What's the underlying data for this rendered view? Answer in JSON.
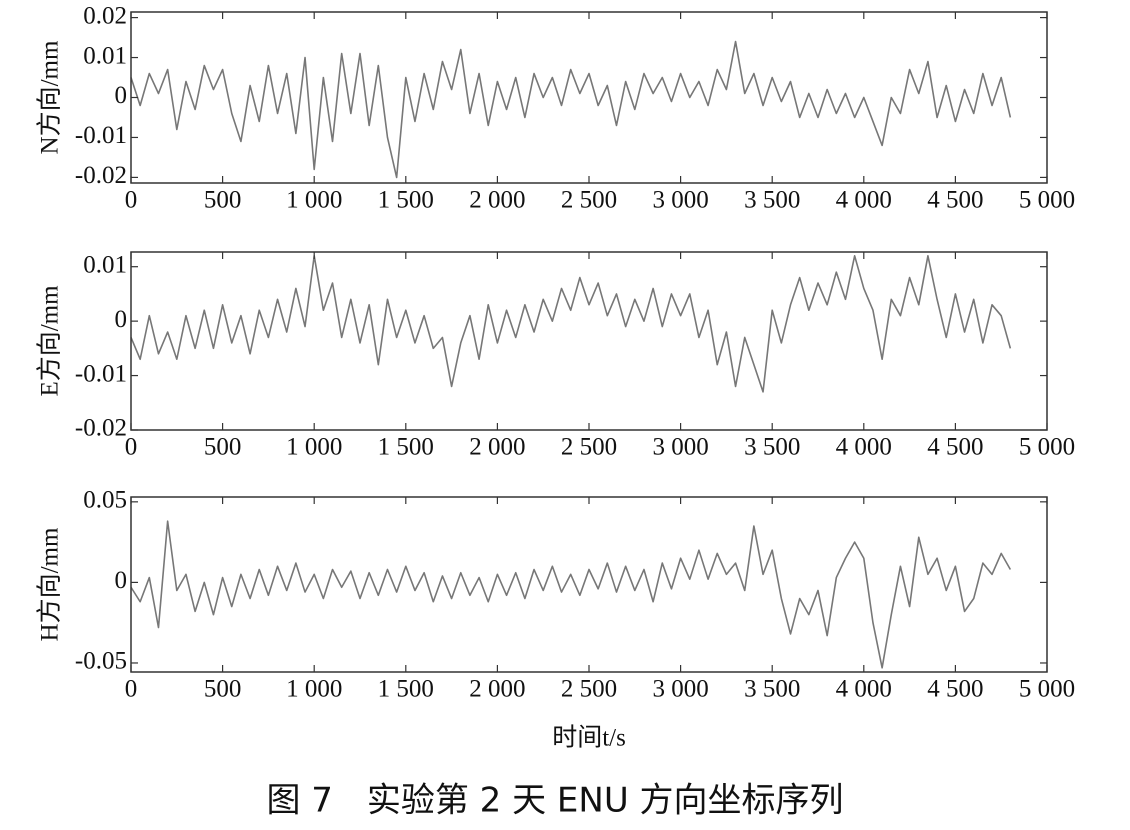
{
  "caption": "图 7　实验第 2 天 ENU 方向坐标序列",
  "chart_data": [
    {
      "type": "line",
      "ylabel": "N方向/mm",
      "x": [
        0,
        50,
        100,
        150,
        200,
        250,
        300,
        350,
        400,
        450,
        500,
        550,
        600,
        650,
        700,
        750,
        800,
        850,
        900,
        950,
        1000,
        1050,
        1100,
        1150,
        1200,
        1250,
        1300,
        1350,
        1400,
        1450,
        1500,
        1550,
        1600,
        1650,
        1700,
        1750,
        1800,
        1850,
        1900,
        1950,
        2000,
        2050,
        2100,
        2150,
        2200,
        2250,
        2300,
        2350,
        2400,
        2450,
        2500,
        2550,
        2600,
        2650,
        2700,
        2750,
        2800,
        2850,
        2900,
        2950,
        3000,
        3050,
        3100,
        3150,
        3200,
        3250,
        3300,
        3350,
        3400,
        3450,
        3500,
        3550,
        3600,
        3650,
        3700,
        3750,
        3800,
        3850,
        3900,
        3950,
        4000,
        4050,
        4100,
        4150,
        4200,
        4250,
        4300,
        4350,
        4400,
        4450,
        4500,
        4550,
        4600,
        4650,
        4700,
        4750,
        4800
      ],
      "series": [
        {
          "color": "#777777",
          "values": [
            0.005,
            -0.002,
            0.006,
            0.001,
            0.007,
            -0.008,
            0.004,
            -0.003,
            0.008,
            0.002,
            0.007,
            -0.004,
            -0.011,
            0.003,
            -0.006,
            0.008,
            -0.004,
            0.006,
            -0.009,
            0.01,
            -0.018,
            0.005,
            -0.011,
            0.011,
            -0.004,
            0.011,
            -0.007,
            0.008,
            -0.01,
            -0.02,
            0.005,
            -0.006,
            0.006,
            -0.003,
            0.009,
            0.002,
            0.012,
            -0.004,
            0.006,
            -0.007,
            0.004,
            -0.003,
            0.005,
            -0.005,
            0.006,
            0,
            0.005,
            -0.002,
            0.007,
            0.001,
            0.006,
            -0.002,
            0.003,
            -0.007,
            0.004,
            -0.003,
            0.006,
            0.001,
            0.005,
            -0.001,
            0.006,
            0,
            0.004,
            -0.002,
            0.007,
            0.002,
            0.014,
            0.001,
            0.006,
            -0.002,
            0.005,
            -0.001,
            0.004,
            -0.005,
            0.001,
            -0.005,
            0.002,
            -0.004,
            0.001,
            -0.005,
            0,
            -0.006,
            -0.012,
            0,
            -0.004,
            0.007,
            0.001,
            0.009,
            -0.005,
            0.003,
            -0.006,
            0.002,
            -0.004,
            0.006,
            -0.002,
            0.005,
            -0.005
          ]
        }
      ],
      "xlim": [
        0,
        5000
      ],
      "xticks": [
        0,
        500,
        {
          "value": 1000,
          "label": "1 000"
        },
        {
          "value": 1500,
          "label": "1 500"
        },
        {
          "value": 2000,
          "label": "2 000"
        },
        {
          "value": 2500,
          "label": "2 500"
        },
        {
          "value": 3000,
          "label": "3 000"
        },
        {
          "value": 3500,
          "label": "3 500"
        },
        {
          "value": 4000,
          "label": "4 000"
        },
        {
          "value": 4500,
          "label": "4 500"
        },
        {
          "value": 5000,
          "label": "5 000"
        }
      ],
      "ylim": [
        -0.0214,
        0.0214
      ],
      "yticks": [
        -0.02,
        -0.01,
        0,
        0.01,
        0.02
      ]
    },
    {
      "type": "line",
      "ylabel": "E方向/mm",
      "x": [
        0,
        50,
        100,
        150,
        200,
        250,
        300,
        350,
        400,
        450,
        500,
        550,
        600,
        650,
        700,
        750,
        800,
        850,
        900,
        950,
        1000,
        1050,
        1100,
        1150,
        1200,
        1250,
        1300,
        1350,
        1400,
        1450,
        1500,
        1550,
        1600,
        1650,
        1700,
        1750,
        1800,
        1850,
        1900,
        1950,
        2000,
        2050,
        2100,
        2150,
        2200,
        2250,
        2300,
        2350,
        2400,
        2450,
        2500,
        2550,
        2600,
        2650,
        2700,
        2750,
        2800,
        2850,
        2900,
        2950,
        3000,
        3050,
        3100,
        3150,
        3200,
        3250,
        3300,
        3350,
        3400,
        3450,
        3500,
        3550,
        3600,
        3650,
        3700,
        3750,
        3800,
        3850,
        3900,
        3950,
        4000,
        4050,
        4100,
        4150,
        4200,
        4250,
        4300,
        4350,
        4400,
        4450,
        4500,
        4550,
        4600,
        4650,
        4700,
        4750,
        4800
      ],
      "series": [
        {
          "color": "#777777",
          "values": [
            -0.003,
            -0.007,
            0.001,
            -0.006,
            -0.002,
            -0.007,
            0.001,
            -0.005,
            0.002,
            -0.005,
            0.003,
            -0.004,
            0.001,
            -0.006,
            0.002,
            -0.003,
            0.004,
            -0.002,
            0.006,
            -0.001,
            0.012,
            0.002,
            0.007,
            -0.003,
            0.004,
            -0.004,
            0.003,
            -0.008,
            0.004,
            -0.003,
            0.002,
            -0.004,
            0.001,
            -0.005,
            -0.003,
            -0.012,
            -0.004,
            0.001,
            -0.007,
            0.003,
            -0.004,
            0.002,
            -0.003,
            0.003,
            -0.002,
            0.004,
            0,
            0.006,
            0.002,
            0.008,
            0.003,
            0.007,
            0.001,
            0.005,
            -0.001,
            0.004,
            0,
            0.006,
            -0.001,
            0.005,
            0.001,
            0.005,
            -0.003,
            0.002,
            -0.008,
            -0.002,
            -0.012,
            -0.003,
            -0.008,
            -0.013,
            0.002,
            -0.004,
            0.003,
            0.008,
            0.002,
            0.007,
            0.003,
            0.009,
            0.004,
            0.012,
            0.006,
            0.002,
            -0.007,
            0.004,
            0.001,
            0.008,
            0.003,
            0.012,
            0.004,
            -0.003,
            0.005,
            -0.002,
            0.004,
            -0.004,
            0.003,
            0.001,
            -0.005
          ]
        }
      ],
      "xlim": [
        0,
        5000
      ],
      "xticks": [
        0,
        500,
        {
          "value": 1000,
          "label": "1 000"
        },
        {
          "value": 1500,
          "label": "1 500"
        },
        {
          "value": 2000,
          "label": "2 000"
        },
        {
          "value": 2500,
          "label": "2 500"
        },
        {
          "value": 3000,
          "label": "3 000"
        },
        {
          "value": 3500,
          "label": "3 500"
        },
        {
          "value": 4000,
          "label": "4 000"
        },
        {
          "value": 4500,
          "label": "4 500"
        },
        {
          "value": 5000,
          "label": "5 000"
        }
      ],
      "ylim": [
        -0.02,
        0.0127
      ],
      "yticks": [
        -0.02,
        -0.01,
        0,
        0.01
      ]
    },
    {
      "type": "line",
      "ylabel": "H方向/mm",
      "xlabel": "时间t/s",
      "x": [
        0,
        50,
        100,
        150,
        200,
        250,
        300,
        350,
        400,
        450,
        500,
        550,
        600,
        650,
        700,
        750,
        800,
        850,
        900,
        950,
        1000,
        1050,
        1100,
        1150,
        1200,
        1250,
        1300,
        1350,
        1400,
        1450,
        1500,
        1550,
        1600,
        1650,
        1700,
        1750,
        1800,
        1850,
        1900,
        1950,
        2000,
        2050,
        2100,
        2150,
        2200,
        2250,
        2300,
        2350,
        2400,
        2450,
        2500,
        2550,
        2600,
        2650,
        2700,
        2750,
        2800,
        2850,
        2900,
        2950,
        3000,
        3050,
        3100,
        3150,
        3200,
        3250,
        3300,
        3350,
        3400,
        3450,
        3500,
        3550,
        3600,
        3650,
        3700,
        3750,
        3800,
        3850,
        3900,
        3950,
        4000,
        4050,
        4100,
        4150,
        4200,
        4250,
        4300,
        4350,
        4400,
        4450,
        4500,
        4550,
        4600,
        4650,
        4700,
        4750,
        4800
      ],
      "series": [
        {
          "color": "#777777",
          "values": [
            -0.003,
            -0.012,
            0.003,
            -0.028,
            0.038,
            -0.005,
            0.005,
            -0.018,
            0,
            -0.02,
            0.003,
            -0.015,
            0.005,
            -0.01,
            0.008,
            -0.008,
            0.01,
            -0.005,
            0.012,
            -0.006,
            0.005,
            -0.01,
            0.008,
            -0.003,
            0.007,
            -0.01,
            0.006,
            -0.008,
            0.008,
            -0.006,
            0.01,
            -0.005,
            0.006,
            -0.012,
            0.004,
            -0.01,
            0.006,
            -0.008,
            0.003,
            -0.012,
            0.005,
            -0.008,
            0.006,
            -0.01,
            0.008,
            -0.005,
            0.01,
            -0.006,
            0.005,
            -0.008,
            0.008,
            -0.004,
            0.012,
            -0.006,
            0.01,
            -0.005,
            0.008,
            -0.012,
            0.012,
            -0.004,
            0.015,
            0.002,
            0.02,
            0.002,
            0.018,
            0.005,
            0.012,
            -0.005,
            0.035,
            0.005,
            0.02,
            -0.01,
            -0.032,
            -0.01,
            -0.02,
            -0.005,
            -0.033,
            0.003,
            0.015,
            0.025,
            0.015,
            -0.025,
            -0.053,
            -0.02,
            0.01,
            -0.015,
            0.028,
            0.005,
            0.015,
            -0.005,
            0.01,
            -0.018,
            -0.01,
            0.012,
            0.005,
            0.018,
            0.008
          ]
        }
      ],
      "xlim": [
        0,
        5000
      ],
      "xticks": [
        0,
        500,
        {
          "value": 1000,
          "label": "1 000"
        },
        {
          "value": 1500,
          "label": "1 500"
        },
        {
          "value": 2000,
          "label": "2 000"
        },
        {
          "value": 2500,
          "label": "2 500"
        },
        {
          "value": 3000,
          "label": "3 000"
        },
        {
          "value": 3500,
          "label": "3 500"
        },
        {
          "value": 4000,
          "label": "4 000"
        },
        {
          "value": 4500,
          "label": "4 500"
        },
        {
          "value": 5000,
          "label": "5 000"
        }
      ],
      "ylim": [
        -0.0556,
        0.053
      ],
      "yticks": [
        -0.05,
        0,
        0.05
      ]
    }
  ]
}
